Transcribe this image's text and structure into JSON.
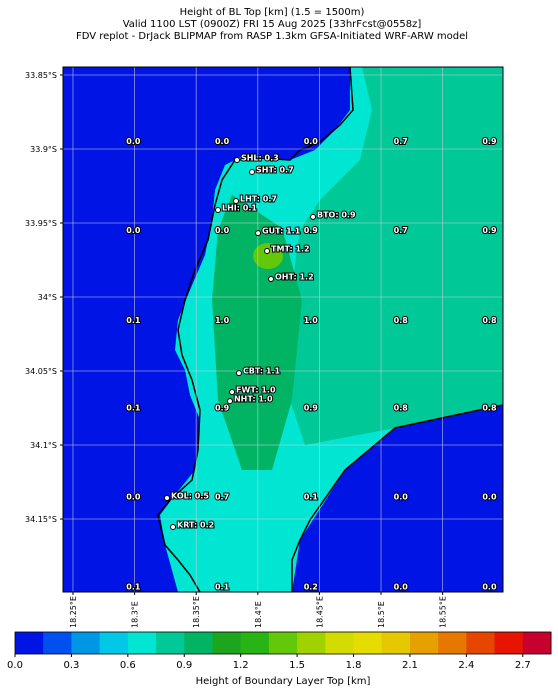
{
  "map": {
    "title": [
      "Height of BL Top [km] (1.5 = 1500m)",
      "Valid 1100 LST (0900Z) FRI 15 Aug 2025 [33hrFcst@0558z]",
      "FDV replot - DrJack BLIPMAP from RASP 1.3km GFSA-Initiated WRF-ARW model"
    ],
    "xlim": [
      18.2419,
      18.599
    ],
    "ylim": [
      -34.1993,
      -33.8446
    ],
    "xticks": [
      {
        "value": 18.25,
        "label": "18.25°E"
      },
      {
        "value": 18.3,
        "label": "18.3°E"
      },
      {
        "value": 18.35,
        "label": "18.35°E"
      },
      {
        "value": 18.4,
        "label": "18.4°E"
      },
      {
        "value": 18.45,
        "label": "18.45°E"
      },
      {
        "value": 18.5,
        "label": "18.5°E"
      },
      {
        "value": 18.55,
        "label": "18.55°E"
      }
    ],
    "yticks": [
      {
        "value": -33.85,
        "label": "33.85°S"
      },
      {
        "value": -33.9,
        "label": "33.9°S"
      },
      {
        "value": -33.95,
        "label": "33.95°S"
      },
      {
        "value": -34.0,
        "label": "34°S"
      },
      {
        "value": -34.05,
        "label": "34.05°S"
      },
      {
        "value": -34.1,
        "label": "34.1°S"
      },
      {
        "value": -34.15,
        "label": "34.15°S"
      }
    ],
    "grid_values": {
      "lon": [
        18.299,
        18.371,
        18.443,
        18.516,
        18.588
      ],
      "lat": [
        -33.895,
        -33.955,
        -34.016,
        -34.075,
        -34.135,
        -34.196
      ],
      "labels": [
        [
          "0.0",
          "0.0",
          "0.0",
          "0.7",
          "0.9"
        ],
        [
          "0.0",
          "0.0",
          "0.9",
          "0.7",
          "0.9"
        ],
        [
          "0.1",
          "1.0",
          "1.0",
          "0.8",
          "0.8"
        ],
        [
          "0.1",
          "0.9",
          "0.9",
          "0.8",
          "0.8"
        ],
        [
          "0.0",
          "0.7",
          "0.1",
          "0.0",
          "0.0"
        ],
        [
          "0.1",
          "0.1",
          "0.2",
          "0.0",
          "0.0"
        ]
      ]
    },
    "stations": [
      {
        "label": "SHL: 0.3",
        "lon": 18.3831,
        "lat": -33.9074
      },
      {
        "label": "SHT: 0.7",
        "lon": 18.3953,
        "lat": -33.9155
      },
      {
        "label": "LHT: 0.7",
        "lon": 18.3823,
        "lat": -33.9351
      },
      {
        "label": "LHI: 0.1",
        "lon": 18.3677,
        "lat": -33.9412
      },
      {
        "label": "BTO: 0.9",
        "lon": 18.4448,
        "lat": -33.9459
      },
      {
        "label": "GUT: 1.1",
        "lon": 18.4002,
        "lat": -33.9568
      },
      {
        "label": "TMT: 1.2",
        "lon": 18.4075,
        "lat": -33.9689
      },
      {
        "label": "OHT: 1.2",
        "lon": 18.4107,
        "lat": -33.9878
      },
      {
        "label": "CBT: 1.1",
        "lon": 18.3847,
        "lat": -34.0514
      },
      {
        "label": "FWT: 1.0",
        "lon": 18.3791,
        "lat": -34.0642
      },
      {
        "label": "NHT: 1.0",
        "lon": 18.3774,
        "lat": -34.0703
      },
      {
        "label": "KOL: 0.5",
        "lon": 18.3263,
        "lat": -34.1358
      },
      {
        "label": "KRT: 0.2",
        "lon": 18.3312,
        "lat": -34.1554
      }
    ],
    "colorbar": {
      "label": "Height of Boundary Layer Top [km]",
      "lim": [
        0,
        2.85
      ],
      "ticks": [
        {
          "value": 0,
          "label": "0.0"
        },
        {
          "value": 0.3,
          "label": "0.3"
        },
        {
          "value": 0.6,
          "label": "0.6"
        },
        {
          "value": 0.9,
          "label": "0.9"
        },
        {
          "value": 1.2,
          "label": "1.2"
        },
        {
          "value": 1.5,
          "label": "1.5"
        },
        {
          "value": 1.8,
          "label": "1.8"
        },
        {
          "value": 2.1,
          "label": "2.1"
        },
        {
          "value": 2.4,
          "label": "2.4"
        },
        {
          "value": 2.7,
          "label": "2.7"
        }
      ],
      "colors": [
        "#0014e6",
        "#0050f0",
        "#0096e6",
        "#00c8e6",
        "#00e6d2",
        "#00c896",
        "#00b464",
        "#1ea51e",
        "#28b414",
        "#64c80a",
        "#a0d200",
        "#d2dc00",
        "#e6dc00",
        "#e6c800",
        "#e6a000",
        "#e67800",
        "#e64600",
        "#e61400",
        "#c8002d"
      ]
    }
  }
}
